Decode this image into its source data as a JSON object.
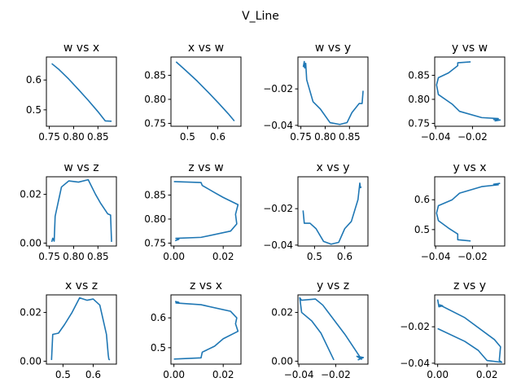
{
  "figure": {
    "title": "V_Line",
    "line_color": "#1f77b4"
  },
  "chart_data": [
    {
      "type": "line",
      "title": "w vs x",
      "xlim": [
        0.744,
        0.888
      ],
      "ylim": [
        0.445,
        0.677
      ],
      "xticks": [
        0.75,
        0.8,
        0.85
      ],
      "xtick_labels": [
        "0.75",
        "0.80",
        "0.85"
      ],
      "yticks": [
        0.5,
        0.6
      ],
      "ytick_labels": [
        "0.5",
        "0.6"
      ],
      "x": [
        0.755,
        0.77,
        0.79,
        0.81,
        0.83,
        0.85,
        0.865,
        0.878
      ],
      "y": [
        0.655,
        0.635,
        0.603,
        0.568,
        0.532,
        0.494,
        0.463,
        0.462
      ]
    },
    {
      "type": "line",
      "title": "x vs w",
      "xlim": [
        0.445,
        0.677
      ],
      "ylim": [
        0.744,
        0.888
      ],
      "xticks": [
        0.5,
        0.6
      ],
      "xtick_labels": [
        "0.5",
        "0.6"
      ],
      "yticks": [
        0.75,
        0.8,
        0.85
      ],
      "ytick_labels": [
        "0.75",
        "0.80",
        "0.85"
      ],
      "x": [
        0.462,
        0.494,
        0.532,
        0.568,
        0.603,
        0.635,
        0.655
      ],
      "y": [
        0.878,
        0.86,
        0.838,
        0.815,
        0.792,
        0.77,
        0.755
      ]
    },
    {
      "type": "line",
      "title": "w vs y",
      "xlim": [
        0.744,
        0.888
      ],
      "ylim": [
        -0.0405,
        -0.0025
      ],
      "xticks": [
        0.75,
        0.8,
        0.85
      ],
      "xtick_labels": [
        "0.75",
        "0.80",
        "0.85"
      ],
      "yticks": [
        -0.04,
        -0.02
      ],
      "ytick_labels": [
        "−0.04",
        "−0.02"
      ],
      "x": [
        0.755,
        0.757,
        0.758,
        0.76,
        0.762,
        0.775,
        0.79,
        0.81,
        0.83,
        0.845,
        0.855,
        0.87,
        0.876,
        0.878
      ],
      "y": [
        -0.008,
        -0.005,
        -0.0085,
        -0.006,
        -0.015,
        -0.027,
        -0.031,
        -0.0385,
        -0.0395,
        -0.0385,
        -0.033,
        -0.028,
        -0.028,
        -0.021
      ]
    },
    {
      "type": "line",
      "title": "y vs w",
      "xlim": [
        -0.0405,
        -0.0025
      ],
      "ylim": [
        0.744,
        0.888
      ],
      "xticks": [
        -0.04,
        -0.02
      ],
      "xtick_labels": [
        "−0.04",
        "−0.02"
      ],
      "yticks": [
        0.75,
        0.8,
        0.85
      ],
      "ytick_labels": [
        "0.75",
        "0.80",
        "0.85"
      ],
      "x": [
        -0.021,
        -0.028,
        -0.028,
        -0.033,
        -0.0385,
        -0.0395,
        -0.0385,
        -0.031,
        -0.027,
        -0.015,
        -0.006,
        -0.0085,
        -0.005,
        -0.008
      ],
      "y": [
        0.878,
        0.876,
        0.87,
        0.855,
        0.845,
        0.83,
        0.81,
        0.79,
        0.775,
        0.762,
        0.76,
        0.758,
        0.757,
        0.755
      ]
    },
    {
      "type": "line",
      "title": "w vs z",
      "xlim": [
        0.744,
        0.888
      ],
      "ylim": [
        -0.0012,
        0.0272
      ],
      "xticks": [
        0.75,
        0.8,
        0.85
      ],
      "xtick_labels": [
        "0.75",
        "0.80",
        "0.85"
      ],
      "yticks": [
        0.0,
        0.02
      ],
      "ytick_labels": [
        "0.00",
        "0.02"
      ],
      "x": [
        0.755,
        0.757,
        0.76,
        0.762,
        0.775,
        0.79,
        0.81,
        0.83,
        0.845,
        0.855,
        0.87,
        0.876,
        0.878
      ],
      "y": [
        0.0005,
        0.002,
        0.0008,
        0.011,
        0.023,
        0.0255,
        0.025,
        0.026,
        0.02,
        0.0165,
        0.012,
        0.0115,
        0.0005
      ]
    },
    {
      "type": "line",
      "title": "z vs w",
      "xlim": [
        -0.0012,
        0.0272
      ],
      "ylim": [
        0.744,
        0.888
      ],
      "xticks": [
        0.0,
        0.02
      ],
      "xtick_labels": [
        "0.00",
        "0.02"
      ],
      "yticks": [
        0.75,
        0.8,
        0.85
      ],
      "ytick_labels": [
        "0.75",
        "0.80",
        "0.85"
      ],
      "x": [
        0.0,
        0.011,
        0.0115,
        0.0165,
        0.02,
        0.026,
        0.025,
        0.0255,
        0.023,
        0.011,
        0.0008,
        0.002,
        0.0005
      ],
      "y": [
        0.878,
        0.876,
        0.87,
        0.855,
        0.845,
        0.83,
        0.81,
        0.79,
        0.775,
        0.762,
        0.76,
        0.758,
        0.755
      ]
    },
    {
      "type": "line",
      "title": "x vs y",
      "xlim": [
        0.445,
        0.677
      ],
      "ylim": [
        -0.0405,
        -0.0025
      ],
      "xticks": [
        0.5,
        0.6
      ],
      "xtick_labels": [
        "0.5",
        "0.6"
      ],
      "yticks": [
        -0.04,
        -0.02
      ],
      "ytick_labels": [
        "−0.04",
        "−0.02"
      ],
      "x": [
        0.462,
        0.466,
        0.485,
        0.505,
        0.53,
        0.555,
        0.58,
        0.6,
        0.622,
        0.644,
        0.65,
        0.652,
        0.655
      ],
      "y": [
        -0.021,
        -0.028,
        -0.028,
        -0.031,
        -0.038,
        -0.0395,
        -0.0385,
        -0.031,
        -0.027,
        -0.015,
        -0.006,
        -0.0085,
        -0.008
      ]
    },
    {
      "type": "line",
      "title": "y vs x",
      "xlim": [
        -0.0405,
        -0.0025
      ],
      "ylim": [
        0.445,
        0.677
      ],
      "xticks": [
        -0.04,
        -0.02
      ],
      "xtick_labels": [
        "−0.04",
        "−0.02"
      ],
      "yticks": [
        0.5,
        0.6
      ],
      "ytick_labels": [
        "0.5",
        "0.6"
      ],
      "x": [
        -0.021,
        -0.028,
        -0.028,
        -0.033,
        -0.0385,
        -0.0395,
        -0.0385,
        -0.031,
        -0.027,
        -0.015,
        -0.006,
        -0.0085,
        -0.005
      ],
      "y": [
        0.462,
        0.466,
        0.485,
        0.505,
        0.53,
        0.555,
        0.58,
        0.6,
        0.622,
        0.644,
        0.65,
        0.652,
        0.655
      ]
    },
    {
      "type": "line",
      "title": "x vs z",
      "xlim": [
        0.445,
        0.677
      ],
      "ylim": [
        -0.0012,
        0.0272
      ],
      "xticks": [
        0.5,
        0.6
      ],
      "xtick_labels": [
        "0.5",
        "0.6"
      ],
      "yticks": [
        0.0,
        0.02
      ],
      "ytick_labels": [
        "0.00",
        "0.02"
      ],
      "x": [
        0.462,
        0.466,
        0.485,
        0.505,
        0.53,
        0.555,
        0.58,
        0.6,
        0.622,
        0.644,
        0.65,
        0.652,
        0.655
      ],
      "y": [
        0.0005,
        0.011,
        0.0115,
        0.015,
        0.02,
        0.026,
        0.025,
        0.0255,
        0.023,
        0.011,
        0.0025,
        0.0008,
        0.0005
      ]
    },
    {
      "type": "line",
      "title": "z vs x",
      "xlim": [
        -0.0012,
        0.0272
      ],
      "ylim": [
        0.445,
        0.677
      ],
      "xticks": [
        0.0,
        0.02
      ],
      "xtick_labels": [
        "0.00",
        "0.02"
      ],
      "yticks": [
        0.5,
        0.6
      ],
      "ytick_labels": [
        "0.5",
        "0.6"
      ],
      "x": [
        0.0,
        0.011,
        0.0115,
        0.0165,
        0.02,
        0.026,
        0.025,
        0.0255,
        0.023,
        0.011,
        0.0008,
        0.002,
        0.0005
      ],
      "y": [
        0.462,
        0.466,
        0.485,
        0.505,
        0.53,
        0.555,
        0.58,
        0.6,
        0.622,
        0.644,
        0.65,
        0.652,
        0.655
      ]
    },
    {
      "type": "line",
      "title": "y vs z",
      "xlim": [
        -0.0405,
        -0.0025
      ],
      "ylim": [
        -0.0012,
        0.0272
      ],
      "xticks": [
        -0.04,
        -0.02
      ],
      "xtick_labels": [
        "−0.04",
        "−0.02"
      ],
      "yticks": [
        0.0,
        0.02
      ],
      "ytick_labels": [
        "0.00",
        "0.02"
      ],
      "x": [
        -0.021,
        -0.028,
        -0.033,
        -0.0385,
        -0.0395,
        -0.0385,
        -0.031,
        -0.027,
        -0.015,
        -0.006,
        -0.0085,
        -0.005,
        -0.008
      ],
      "y": [
        0.0005,
        0.0115,
        0.0165,
        0.02,
        0.026,
        0.025,
        0.0255,
        0.023,
        0.011,
        0.0008,
        0.002,
        0.0015,
        0.0005
      ]
    },
    {
      "type": "line",
      "title": "z vs y",
      "xlim": [
        -0.0012,
        0.0272
      ],
      "ylim": [
        -0.0405,
        -0.0025
      ],
      "xticks": [
        0.0,
        0.02
      ],
      "xtick_labels": [
        "0.00",
        "0.02"
      ],
      "yticks": [
        -0.04,
        -0.02
      ],
      "ytick_labels": [
        "−0.04",
        "−0.02"
      ],
      "x": [
        0.0,
        0.011,
        0.0165,
        0.02,
        0.026,
        0.025,
        0.0255,
        0.023,
        0.011,
        0.0008,
        0.002,
        0.0005,
        0.0
      ],
      "y": [
        -0.021,
        -0.028,
        -0.033,
        -0.0385,
        -0.0395,
        -0.0385,
        -0.031,
        -0.027,
        -0.015,
        -0.008,
        -0.0085,
        -0.009,
        -0.005
      ]
    }
  ]
}
